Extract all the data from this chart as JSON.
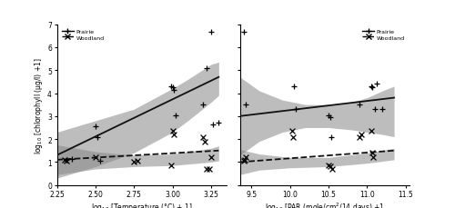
{
  "panel1": {
    "xlabel": "log$_{10}$ [Temperature (°C) + 1]",
    "xlim": [
      2.25,
      3.35
    ],
    "xticks": [
      2.25,
      2.5,
      2.75,
      3.0,
      3.25
    ],
    "prairie_x": [
      2.31,
      2.35,
      2.5,
      2.51,
      2.53,
      2.99,
      3.0,
      3.01,
      3.02,
      3.2,
      3.22,
      3.25,
      3.26,
      3.3
    ],
    "prairie_y": [
      1.1,
      1.15,
      2.55,
      2.1,
      1.05,
      4.3,
      4.25,
      4.15,
      3.05,
      3.5,
      5.1,
      6.65,
      2.65,
      2.7
    ],
    "woodland_x": [
      2.3,
      2.31,
      2.5,
      2.75,
      2.77,
      2.99,
      3.0,
      3.01,
      3.2,
      3.21,
      3.22,
      3.24,
      3.25
    ],
    "woodland_y": [
      1.1,
      1.05,
      1.2,
      1.0,
      1.05,
      0.85,
      2.35,
      2.2,
      2.1,
      1.9,
      0.7,
      0.7,
      1.2
    ],
    "prairie_ci_x": [
      2.25,
      2.5,
      2.75,
      3.0,
      3.1,
      3.25,
      3.3
    ],
    "prairie_ci_upper": [
      2.3,
      2.8,
      3.3,
      4.2,
      4.6,
      5.25,
      5.35
    ],
    "prairie_ci_lower": [
      0.3,
      0.8,
      1.4,
      2.3,
      2.8,
      3.6,
      3.9
    ],
    "woodland_ci_x": [
      2.25,
      2.5,
      2.75,
      3.0,
      3.25,
      3.3
    ],
    "woodland_ci_upper": [
      1.75,
      1.45,
      1.3,
      1.35,
      1.6,
      1.7
    ],
    "woodland_ci_lower": [
      0.45,
      0.7,
      0.8,
      0.85,
      1.0,
      1.05
    ],
    "prairie_line_x": [
      2.25,
      3.3
    ],
    "prairie_line_y": [
      1.3,
      4.7
    ],
    "woodland_line_x": [
      2.25,
      3.3
    ],
    "woodland_line_y": [
      1.1,
      1.5
    ]
  },
  "panel2": {
    "xlabel": "log$_{10}$ [PAR (mole/cm$^2$/14 days) +1",
    "xlim": [
      9.35,
      11.55
    ],
    "xticks": [
      9.5,
      10.0,
      10.5,
      11.0,
      11.5
    ],
    "prairie_x": [
      9.4,
      9.42,
      10.05,
      10.07,
      10.5,
      10.52,
      10.54,
      10.9,
      11.05,
      11.07,
      11.1,
      11.12,
      11.2
    ],
    "prairie_y": [
      6.65,
      3.5,
      4.3,
      3.3,
      3.05,
      2.95,
      2.1,
      3.5,
      4.3,
      4.25,
      3.3,
      4.4,
      3.3
    ],
    "woodland_x": [
      9.4,
      9.41,
      9.42,
      10.03,
      10.04,
      10.5,
      10.52,
      10.55,
      10.9,
      10.92,
      11.05,
      11.07,
      11.08
    ],
    "woodland_y": [
      1.05,
      1.1,
      1.2,
      2.35,
      2.1,
      0.85,
      0.8,
      0.7,
      2.1,
      2.2,
      2.35,
      1.4,
      1.2
    ],
    "prairie_ci_x": [
      9.35,
      9.6,
      9.9,
      10.2,
      10.5,
      10.8,
      11.0,
      11.2,
      11.35
    ],
    "prairie_ci_upper": [
      4.7,
      4.1,
      3.7,
      3.5,
      3.5,
      3.6,
      3.8,
      4.1,
      4.3
    ],
    "prairie_ci_lower": [
      1.3,
      1.9,
      2.3,
      2.5,
      2.5,
      2.4,
      2.3,
      2.2,
      2.1
    ],
    "woodland_ci_x": [
      9.35,
      9.6,
      10.0,
      10.5,
      11.0,
      11.35
    ],
    "woodland_ci_upper": [
      1.55,
      1.35,
      1.2,
      1.2,
      1.4,
      1.6
    ],
    "woodland_ci_lower": [
      0.45,
      0.65,
      0.75,
      0.8,
      0.95,
      1.1
    ],
    "prairie_line_x": [
      9.35,
      11.35
    ],
    "prairie_line_y": [
      3.0,
      3.8
    ],
    "woodland_line_x": [
      9.35,
      11.35
    ],
    "woodland_line_y": [
      1.0,
      1.5
    ]
  },
  "ylabel": "log$_{10}$ [chlorophyll (μg/l) +1]",
  "ylim": [
    0,
    7
  ],
  "yticks": [
    0,
    1,
    2,
    3,
    4,
    5,
    6,
    7
  ],
  "ci_color": "#888888",
  "ci_alpha": 0.55,
  "line_color": "#111111",
  "bg_color": "#ffffff"
}
